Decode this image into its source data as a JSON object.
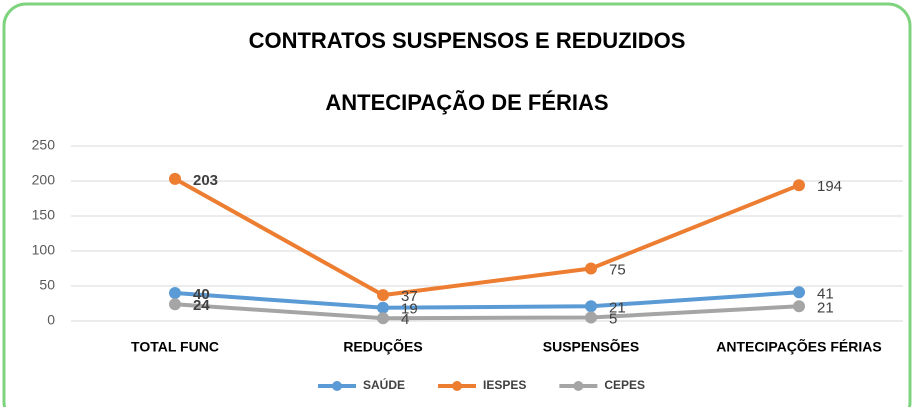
{
  "chart_data": {
    "type": "line",
    "title": "CONTRATOS SUSPENSOS E REDUZIDOS",
    "subtitle": "ANTECIPAÇÃO DE FÉRIAS",
    "categories": [
      "TOTAL FUNC",
      "REDUÇÕES",
      "SUSPENSÕES",
      "ANTECIPAÇÕES FÉRIAS"
    ],
    "series": [
      {
        "name": "SAÚDE",
        "color": "#5b9bd5",
        "values": [
          40,
          19,
          21,
          41
        ]
      },
      {
        "name": "IESPES",
        "color": "#ed7d31",
        "values": [
          203,
          37,
          75,
          194
        ]
      },
      {
        "name": "CEPES",
        "color": "#a5a5a5",
        "values": [
          24,
          4,
          5,
          21
        ]
      }
    ],
    "ylim": [
      0,
      250
    ],
    "yticks": [
      0,
      50,
      100,
      150,
      200,
      250
    ],
    "grid": true,
    "legend": "bottom"
  }
}
